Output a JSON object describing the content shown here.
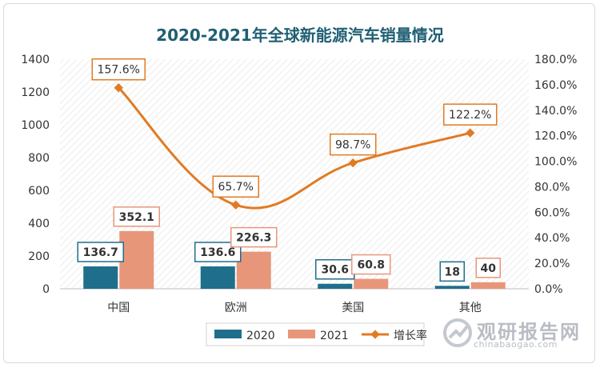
{
  "chart_data": {
    "type": "bar",
    "title": "2020-2021年全球新能源汽车销量情况",
    "categories": [
      "中国",
      "欧洲",
      "美国",
      "其他"
    ],
    "series": [
      {
        "name": "2020",
        "type": "bar",
        "axis": "left",
        "color": "#1f6e8c",
        "values": [
          136.7,
          136.6,
          30.6,
          18
        ],
        "labels": [
          "136.7",
          "136.6",
          "30.6",
          "18"
        ]
      },
      {
        "name": "2021",
        "type": "bar",
        "axis": "left",
        "color": "#e8967a",
        "values": [
          352.1,
          226.3,
          60.8,
          40
        ],
        "labels": [
          "352.1",
          "226.3",
          "60.8",
          "40"
        ]
      },
      {
        "name": "增长率",
        "type": "line",
        "axis": "right",
        "color": "#e07b24",
        "values": [
          157.6,
          65.7,
          98.7,
          122.2
        ],
        "labels": [
          "157.6%",
          "65.7%",
          "98.7%",
          "122.2%"
        ]
      }
    ],
    "y_left": {
      "min": 0,
      "max": 1400,
      "ticks": [
        "0",
        "200",
        "400",
        "600",
        "800",
        "1000",
        "1200",
        "1400"
      ]
    },
    "y_right": {
      "min": 0,
      "max": 180,
      "ticks": [
        "0.0%",
        "20.0%",
        "40.0%",
        "60.0%",
        "80.0%",
        "100.0%",
        "120.0%",
        "140.0%",
        "160.0%",
        "180.0%"
      ]
    },
    "legend": {
      "position": "bottom"
    },
    "grid": false
  },
  "watermark": {
    "text": "观研报告网",
    "url": "chinabaogao.com"
  }
}
